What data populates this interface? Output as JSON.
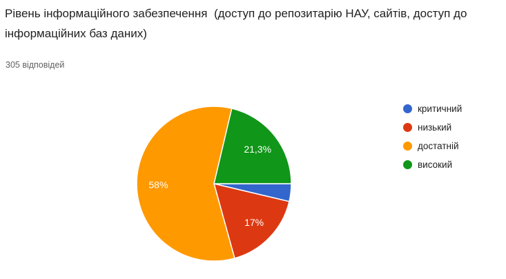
{
  "header": {
    "title": "Рівень інформаційного забезпечення  (доступ до репозитарію НАУ, сайтів, доступ до інформаційних баз даних)",
    "responses": "305 відповідей"
  },
  "chart_data": {
    "type": "pie",
    "title": "Рівень інформаційного забезпечення (доступ до репозитарію НАУ, сайтів, доступ до інформаційних баз даних)",
    "subtitle": "305 відповідей",
    "legend_position": "right",
    "start_angle_deg": 0,
    "direction": "clockwise",
    "slices": [
      {
        "label": "критичний",
        "percent": 3.7,
        "display_label": "",
        "color": "#3366CC"
      },
      {
        "label": "низький",
        "percent": 17.0,
        "display_label": "17%",
        "color": "#DC3912"
      },
      {
        "label": "достатній",
        "percent": 58.0,
        "display_label": "58%",
        "color": "#FF9900"
      },
      {
        "label": "високий",
        "percent": 21.3,
        "display_label": "21,3%",
        "color": "#109618"
      }
    ]
  }
}
